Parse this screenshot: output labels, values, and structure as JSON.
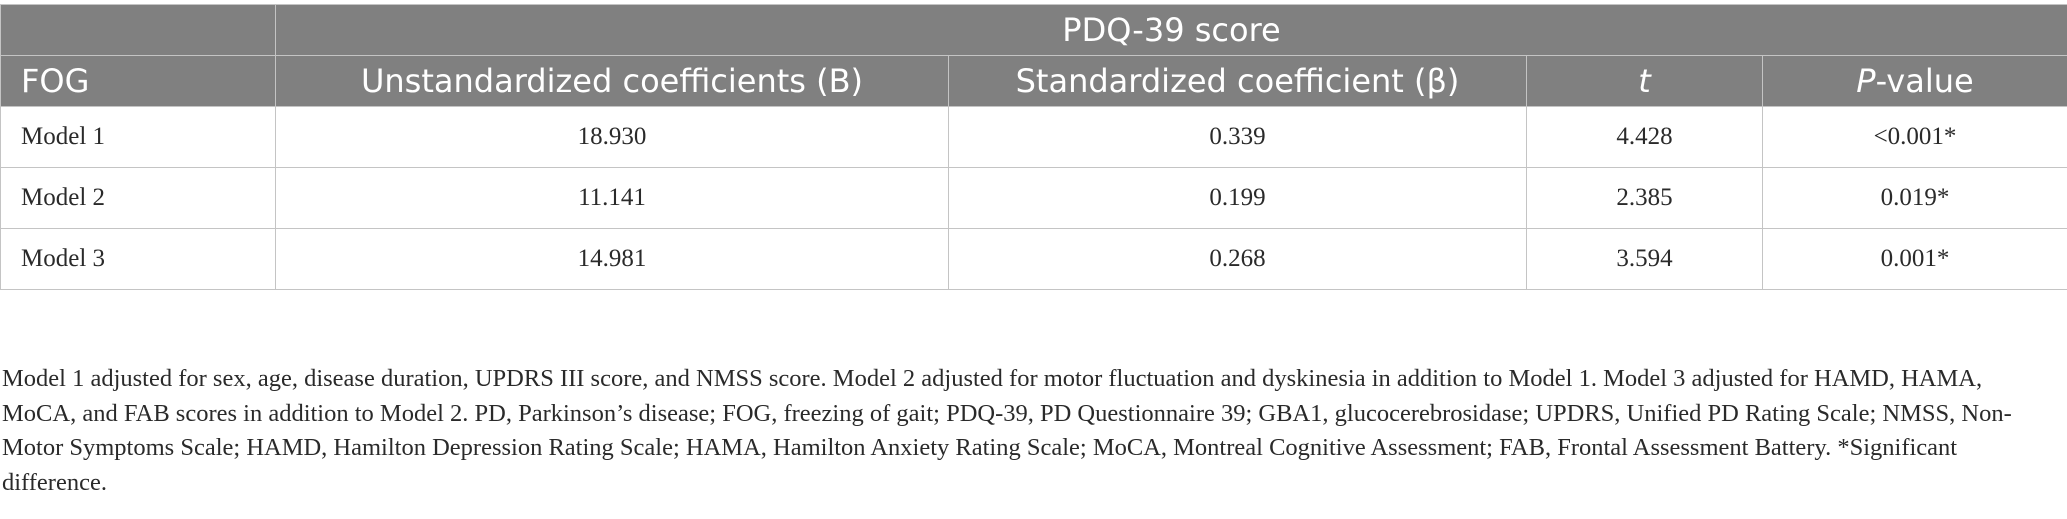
{
  "table": {
    "group_header": "PDQ-39 score",
    "row_header": "FOG",
    "columns": {
      "b": "Unstandardized coefficients (B)",
      "beta": "Standardized coefficient (β)",
      "t": "t",
      "p_italic": "P",
      "p_rest": "-value"
    },
    "rows": [
      {
        "model": "Model 1",
        "b": "18.930",
        "beta": "0.339",
        "t": "4.428",
        "p": "<0.001*"
      },
      {
        "model": "Model 2",
        "b": "11.141",
        "beta": "0.199",
        "t": "2.385",
        "p": "0.019*"
      },
      {
        "model": "Model 3",
        "b": "14.981",
        "beta": "0.268",
        "t": "3.594",
        "p": "0.001*"
      }
    ]
  },
  "footnote": "Model 1 adjusted for sex, age, disease duration, UPDRS III score, and NMSS score. Model 2 adjusted for motor fluctuation and dyskinesia in addition to Model 1. Model 3 adjusted for HAMD, HAMA, MoCA, and FAB scores in addition to Model 2. PD, Parkinson’s disease; FOG, freezing of gait; PDQ-39, PD Questionnaire 39; GBA1, glucocerebrosidase; UPDRS, Unified PD Rating Scale; NMSS, Non-Motor Symptoms Scale; HAMD, Hamilton Depression Rating Scale; HAMA, Hamilton Anxiety Rating Scale; MoCA, Montreal Cognitive Assessment; FAB, Frontal Assessment Battery. *Significant difference."
}
